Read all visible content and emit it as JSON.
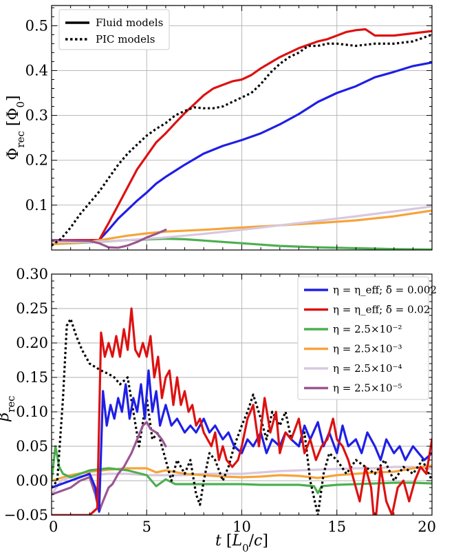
{
  "chart_data": [
    {
      "type": "line",
      "ylabel": "Φ_rec [Φ_0]",
      "xlabel": "",
      "xlim": [
        0,
        20
      ],
      "ylim": [
        0.0,
        0.545
      ],
      "xticks": [
        0,
        5,
        10,
        15,
        20
      ],
      "yticks": [
        {
          "v": 0.1,
          "label": "0.1"
        },
        {
          "v": 0.2,
          "label": "0.2"
        },
        {
          "v": 0.3,
          "label": "0.3"
        },
        {
          "v": 0.4,
          "label": "0.4"
        },
        {
          "v": 0.5,
          "label": "0.5"
        }
      ],
      "grid": true,
      "legend": {
        "position": "top-left",
        "entries": [
          {
            "label": "Fluid models",
            "style": "solid"
          },
          {
            "label": "PIC models",
            "style": "dotted"
          }
        ]
      },
      "series": [
        {
          "key": "eff002",
          "color": "#1f1fe6",
          "style": "solid",
          "x": [
            0,
            2.5,
            3,
            3.5,
            4,
            4.5,
            5,
            5.5,
            6,
            7,
            8,
            9,
            10,
            11,
            12,
            13,
            14,
            15,
            16,
            17,
            18,
            19,
            20
          ],
          "y": [
            0.022,
            0.022,
            0.045,
            0.07,
            0.09,
            0.11,
            0.128,
            0.148,
            0.163,
            0.19,
            0.215,
            0.232,
            0.245,
            0.26,
            0.28,
            0.303,
            0.33,
            0.35,
            0.365,
            0.385,
            0.397,
            0.41,
            0.418
          ]
        },
        {
          "key": "eff02",
          "color": "#dd1111",
          "style": "solid",
          "x": [
            0,
            2.5,
            3,
            3.5,
            4,
            4.5,
            5,
            5.5,
            6,
            6.5,
            7,
            7.5,
            8,
            8.5,
            9,
            9.5,
            10,
            10.5,
            11,
            12,
            13,
            14,
            14.5,
            15,
            15.5,
            16,
            16.5,
            17,
            18,
            19,
            20
          ],
          "y": [
            0.022,
            0.022,
            0.06,
            0.1,
            0.14,
            0.18,
            0.21,
            0.24,
            0.26,
            0.283,
            0.305,
            0.325,
            0.345,
            0.36,
            0.368,
            0.376,
            0.38,
            0.39,
            0.405,
            0.43,
            0.45,
            0.465,
            0.47,
            0.478,
            0.486,
            0.49,
            0.492,
            0.478,
            0.478,
            0.483,
            0.488
          ]
        },
        {
          "key": "eta25e2",
          "color": "#4caf50",
          "style": "solid",
          "x": [
            0,
            2,
            4,
            6,
            7,
            8,
            9,
            10,
            11,
            12,
            14,
            16,
            18,
            20
          ],
          "y": [
            0.013,
            0.017,
            0.022,
            0.025,
            0.024,
            0.021,
            0.018,
            0.015,
            0.012,
            0.009,
            0.006,
            0.004,
            0.002,
            0.001
          ]
        },
        {
          "key": "eta25e3",
          "color": "#f5a43a",
          "style": "solid",
          "x": [
            0,
            2,
            3,
            4,
            5,
            6,
            8,
            10,
            12,
            14,
            16,
            18,
            20
          ],
          "y": [
            0.013,
            0.018,
            0.025,
            0.032,
            0.037,
            0.041,
            0.045,
            0.05,
            0.055,
            0.06,
            0.066,
            0.075,
            0.088
          ]
        },
        {
          "key": "eta25e4",
          "color": "#d8c8de",
          "style": "solid",
          "x": [
            0,
            2,
            4,
            6,
            8,
            10,
            12,
            14,
            16,
            18,
            20
          ],
          "y": [
            0.018,
            0.018,
            0.022,
            0.028,
            0.036,
            0.045,
            0.055,
            0.065,
            0.075,
            0.086,
            0.097
          ]
        },
        {
          "key": "eta25e5",
          "color": "#9a5691",
          "style": "solid",
          "x": [
            0,
            1,
            2,
            2.5,
            3,
            3.5,
            4,
            4.5,
            5,
            5.5,
            6
          ],
          "y": [
            0.022,
            0.021,
            0.02,
            0.015,
            0.006,
            0.005,
            0.01,
            0.018,
            0.028,
            0.036,
            0.045
          ]
        },
        {
          "key": "pic",
          "color": "#000000",
          "style": "dotted",
          "x": [
            0,
            0.5,
            1,
            1.5,
            2,
            2.5,
            3,
            3.5,
            4,
            4.5,
            5,
            5.5,
            6,
            6.5,
            7,
            7.5,
            8,
            8.5,
            9,
            9.5,
            10,
            10.5,
            11,
            11.5,
            12,
            12.5,
            13,
            13.5,
            14,
            14.5,
            15,
            16,
            17,
            18,
            19,
            20
          ],
          "y": [
            0.01,
            0.025,
            0.05,
            0.08,
            0.105,
            0.13,
            0.16,
            0.19,
            0.215,
            0.235,
            0.255,
            0.27,
            0.283,
            0.3,
            0.31,
            0.318,
            0.316,
            0.316,
            0.32,
            0.33,
            0.34,
            0.35,
            0.37,
            0.395,
            0.415,
            0.43,
            0.44,
            0.455,
            0.455,
            0.46,
            0.46,
            0.455,
            0.46,
            0.46,
            0.465,
            0.48
          ]
        }
      ]
    },
    {
      "type": "line",
      "xlabel": "t [L_0/c]",
      "ylabel": "β_rec",
      "xlim": [
        0,
        20
      ],
      "ylim": [
        -0.05,
        0.3
      ],
      "xticks": [
        0,
        5,
        10,
        15,
        20
      ],
      "yticks": [
        {
          "v": -0.05,
          "label": "−0.05"
        },
        {
          "v": 0.0,
          "label": "0.00"
        },
        {
          "v": 0.05,
          "label": "0.05"
        },
        {
          "v": 0.1,
          "label": "0.10"
        },
        {
          "v": 0.15,
          "label": "0.15"
        },
        {
          "v": 0.2,
          "label": "0.20"
        },
        {
          "v": 0.25,
          "label": "0.25"
        },
        {
          "v": 0.3,
          "label": "0.30"
        }
      ],
      "grid": true,
      "legend": {
        "position": "top-right",
        "entries": [
          {
            "label": "η = η_eff; δ̄ = 0.002",
            "color": "#1f1fe6"
          },
          {
            "label": "η = η_eff; δ̄ = 0.02",
            "color": "#dd1111"
          },
          {
            "label": "η = 2.5×10⁻²",
            "color": "#4caf50"
          },
          {
            "label": "η = 2.5×10⁻³",
            "color": "#f5a43a"
          },
          {
            "label": "η = 2.5×10⁻⁴",
            "color": "#d8c8de"
          },
          {
            "label": "η = 2.5×10⁻⁵",
            "color": "#9a5691"
          }
        ]
      },
      "series": [
        {
          "key": "eta25e4",
          "color": "#d8c8de",
          "style": "solid",
          "x": [
            0,
            0.5,
            1,
            2,
            3,
            4,
            5,
            6,
            7,
            8,
            9,
            10,
            11,
            12,
            13,
            14,
            15,
            16,
            17,
            18,
            19,
            20
          ],
          "y": [
            -0.02,
            0.0,
            0.005,
            0.008,
            0.01,
            0.01,
            0.008,
            0.008,
            0.008,
            0.01,
            0.01,
            0.01,
            0.012,
            0.014,
            0.015,
            0.016,
            0.017,
            0.018,
            0.018,
            0.02,
            0.02,
            0.017
          ]
        },
        {
          "key": "eta25e3",
          "color": "#f5a43a",
          "style": "solid",
          "x": [
            0,
            1,
            2,
            3,
            4,
            5,
            5.5,
            6,
            7,
            8,
            9,
            10,
            11,
            12,
            13,
            14,
            15,
            16,
            17,
            18,
            19,
            20
          ],
          "y": [
            0.0,
            0.008,
            0.013,
            0.016,
            0.018,
            0.018,
            0.012,
            0.015,
            0.01,
            0.008,
            0.006,
            0.005,
            0.006,
            0.008,
            0.007,
            0.004,
            0.008,
            0.01,
            0.012,
            0.013,
            0.018,
            0.022
          ]
        },
        {
          "key": "eta25e2",
          "color": "#4caf50",
          "style": "solid",
          "x": [
            0,
            0.2,
            0.4,
            0.6,
            1,
            1.5,
            2,
            3,
            4,
            5,
            5.5,
            6,
            6.5,
            7,
            8,
            9,
            10,
            11,
            12,
            13,
            13.8,
            14,
            14.2,
            15,
            16,
            17,
            18,
            19,
            20
          ],
          "y": [
            0.0,
            0.05,
            0.02,
            0.01,
            0.005,
            0.01,
            0.015,
            0.018,
            0.015,
            0.008,
            -0.008,
            0.002,
            -0.005,
            -0.005,
            -0.005,
            -0.005,
            -0.005,
            -0.006,
            -0.006,
            -0.006,
            -0.008,
            -0.018,
            -0.008,
            -0.006,
            -0.005,
            -0.004,
            -0.003,
            -0.003,
            -0.004
          ]
        },
        {
          "key": "pic",
          "color": "#000000",
          "style": "dotted",
          "x": [
            0,
            0.3,
            0.6,
            0.8,
            1,
            1.3,
            1.6,
            2,
            2.3,
            2.6,
            3,
            3.3,
            3.6,
            4,
            4.3,
            4.6,
            5,
            5.3,
            5.6,
            6,
            6.3,
            6.6,
            7,
            7.3,
            7.6,
            7.8,
            8,
            8.3,
            8.6,
            9,
            9.3,
            9.6,
            10,
            10.3,
            10.6,
            11,
            11.3,
            11.6,
            12,
            12.3,
            12.6,
            13,
            13.3,
            13.6,
            14,
            14.3,
            14.6,
            15,
            15.5,
            16,
            16.5,
            17,
            17.5,
            18,
            18.5,
            19,
            19.5,
            20
          ],
          "y": [
            -0.01,
            0.0,
            0.12,
            0.225,
            0.235,
            0.21,
            0.19,
            0.17,
            0.165,
            0.16,
            0.155,
            0.15,
            0.14,
            0.15,
            0.1,
            0.05,
            0.12,
            0.06,
            0.07,
            0.03,
            0.0,
            0.03,
            0.01,
            0.03,
            -0.02,
            -0.035,
            0.0,
            0.04,
            0.03,
            0.0,
            0.02,
            0.05,
            0.08,
            0.1,
            0.125,
            0.09,
            0.06,
            0.1,
            0.08,
            0.1,
            0.06,
            0.05,
            0.07,
            0.0,
            -0.05,
            0.01,
            0.04,
            0.03,
            0.01,
            0.03,
            0.02,
            0.01,
            0.03,
            0.0,
            0.02,
            0.01,
            0.03,
            0.0
          ]
        },
        {
          "key": "eta25e5",
          "color": "#9a5691",
          "style": "solid",
          "x": [
            0,
            0.5,
            1,
            1.5,
            2,
            2.3,
            2.5,
            2.7,
            3,
            3.2,
            3.5,
            3.8,
            4,
            4.2,
            4.5,
            4.8,
            5,
            5.2,
            5.5,
            5.8,
            6
          ],
          "y": [
            -0.02,
            -0.015,
            -0.01,
            0.0,
            0.005,
            -0.02,
            -0.045,
            -0.03,
            -0.01,
            -0.005,
            0.01,
            0.02,
            0.03,
            0.04,
            0.06,
            0.08,
            0.085,
            0.075,
            0.07,
            0.06,
            0.05
          ]
        },
        {
          "key": "eff002",
          "color": "#1f1fe6",
          "style": "solid",
          "x": [
            0,
            0.5,
            1,
            1.5,
            2,
            2.3,
            2.5,
            2.7,
            2.9,
            3.1,
            3.3,
            3.5,
            3.7,
            3.9,
            4.1,
            4.3,
            4.5,
            4.7,
            4.9,
            5.1,
            5.3,
            5.5,
            5.7,
            6,
            6.3,
            6.6,
            7,
            7.3,
            7.6,
            8,
            8.3,
            8.6,
            9,
            9.3,
            9.6,
            10,
            10.3,
            10.6,
            11,
            11.3,
            11.6,
            12,
            12.3,
            12.6,
            13,
            13.3,
            13.6,
            14,
            14.3,
            14.6,
            15,
            15.3,
            15.6,
            16,
            16.3,
            16.6,
            17,
            17.3,
            17.6,
            18,
            18.3,
            18.6,
            19,
            19.3,
            19.6,
            20
          ],
          "y": [
            -0.01,
            -0.005,
            0.0,
            0.005,
            0.01,
            -0.01,
            -0.045,
            0.13,
            0.08,
            0.11,
            0.09,
            0.12,
            0.1,
            0.14,
            0.09,
            0.12,
            0.1,
            0.14,
            0.09,
            0.16,
            0.1,
            0.13,
            0.08,
            0.11,
            0.08,
            0.09,
            0.07,
            0.08,
            0.07,
            0.09,
            0.07,
            0.08,
            0.06,
            0.07,
            0.05,
            0.04,
            0.06,
            0.05,
            0.07,
            0.04,
            0.06,
            0.05,
            0.07,
            0.06,
            0.05,
            0.08,
            0.06,
            0.085,
            0.05,
            0.07,
            0.04,
            0.08,
            0.05,
            0.06,
            0.04,
            0.07,
            0.05,
            0.03,
            0.06,
            0.04,
            0.05,
            0.03,
            0.05,
            0.04,
            0.03,
            0.04
          ]
        },
        {
          "key": "eff02",
          "color": "#dd1111",
          "style": "solid",
          "x": [
            0,
            1,
            2,
            2.4,
            2.6,
            2.8,
            3,
            3.2,
            3.4,
            3.6,
            3.8,
            4,
            4.2,
            4.4,
            4.6,
            4.8,
            5,
            5.2,
            5.4,
            5.6,
            5.8,
            6,
            6.2,
            6.4,
            6.6,
            6.8,
            7,
            7.2,
            7.4,
            7.6,
            7.8,
            8,
            8.2,
            8.4,
            8.6,
            8.8,
            9,
            9.2,
            9.5,
            9.8,
            10,
            10.3,
            10.6,
            10.9,
            11.2,
            11.5,
            11.8,
            12,
            12.3,
            12.6,
            13,
            13.3,
            13.6,
            13.9,
            14.2,
            14.5,
            14.8,
            15,
            15.3,
            15.6,
            15.9,
            16.2,
            16.5,
            16.8,
            17,
            17.3,
            17.6,
            17.9,
            18.2,
            18.5,
            18.8,
            19.1,
            19.4,
            19.7,
            20
          ],
          "y": [
            -0.05,
            -0.05,
            -0.05,
            -0.04,
            0.215,
            0.18,
            0.2,
            0.18,
            0.21,
            0.18,
            0.22,
            0.19,
            0.25,
            0.19,
            0.18,
            0.2,
            0.18,
            0.21,
            0.15,
            0.18,
            0.12,
            0.15,
            0.16,
            0.11,
            0.15,
            0.11,
            0.13,
            0.1,
            0.11,
            0.08,
            0.09,
            0.07,
            0.06,
            0.05,
            0.07,
            0.03,
            0.05,
            0.03,
            0.02,
            0.03,
            0.05,
            0.09,
            0.11,
            0.05,
            0.12,
            0.07,
            0.1,
            0.04,
            0.07,
            0.06,
            0.09,
            0.04,
            0.06,
            0.03,
            0.05,
            0.06,
            0.09,
            0.06,
            0.05,
            0.03,
            0.0,
            -0.03,
            0.02,
            -0.01,
            -0.07,
            0.02,
            -0.03,
            -0.05,
            -0.01,
            0.0,
            -0.03,
            0.0,
            0.02,
            0.01,
            0.06
          ]
        }
      ]
    }
  ]
}
